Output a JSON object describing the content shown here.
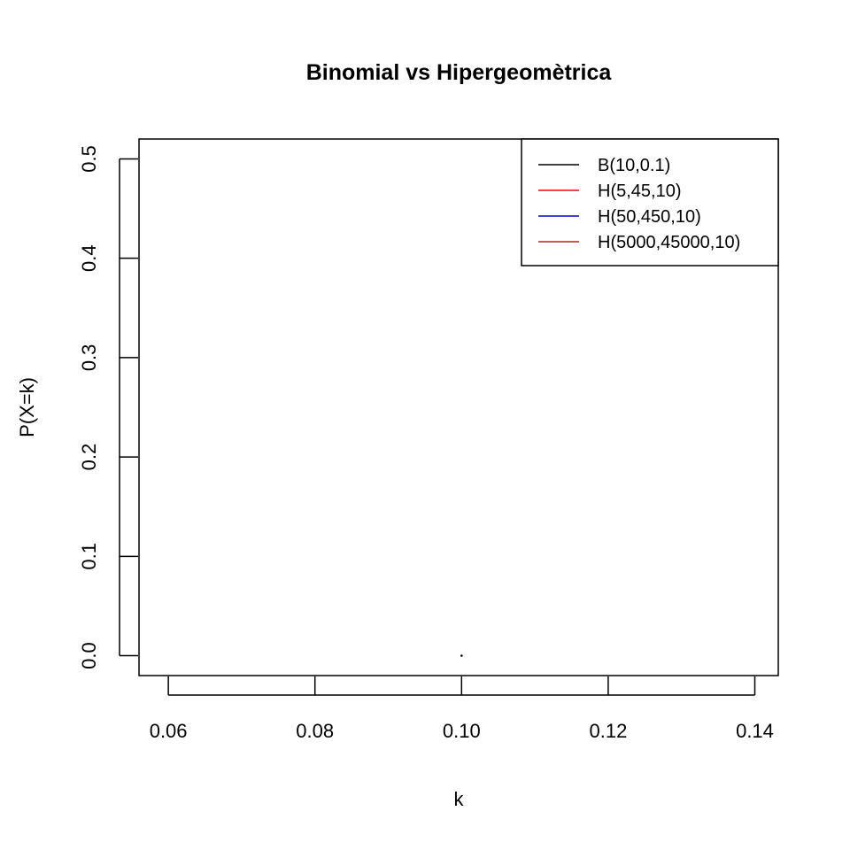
{
  "chart_data": {
    "type": "line",
    "title": "Binomial vs Hipergeomètrica",
    "xlabel": "k",
    "ylabel": "P(X=k)",
    "xlim": [
      0.056,
      0.1432
    ],
    "ylim": [
      -0.02,
      0.52
    ],
    "x_ticks": [
      {
        "value": 0.06,
        "label": "0.06"
      },
      {
        "value": 0.08,
        "label": "0.08"
      },
      {
        "value": 0.1,
        "label": "0.10"
      },
      {
        "value": 0.12,
        "label": "0.12"
      },
      {
        "value": 0.14,
        "label": "0.14"
      }
    ],
    "y_ticks": [
      {
        "value": 0.0,
        "label": "0.0"
      },
      {
        "value": 0.1,
        "label": "0.1"
      },
      {
        "value": 0.2,
        "label": "0.2"
      },
      {
        "value": 0.3,
        "label": "0.3"
      },
      {
        "value": 0.4,
        "label": "0.4"
      },
      {
        "value": 0.5,
        "label": "0.5"
      }
    ],
    "points": [
      {
        "x": 0.1,
        "y": 0.0
      }
    ],
    "legend_position": "top-right",
    "grid": false,
    "series": [
      {
        "name": "B(10,0.1)",
        "color": "#000000"
      },
      {
        "name": "H(5,45,10)",
        "color": "#ff0000"
      },
      {
        "name": "H(50,450,10)",
        "color": "#0000cd"
      },
      {
        "name": "H(5000,45000,10)",
        "color": "#a52a2a"
      }
    ]
  }
}
